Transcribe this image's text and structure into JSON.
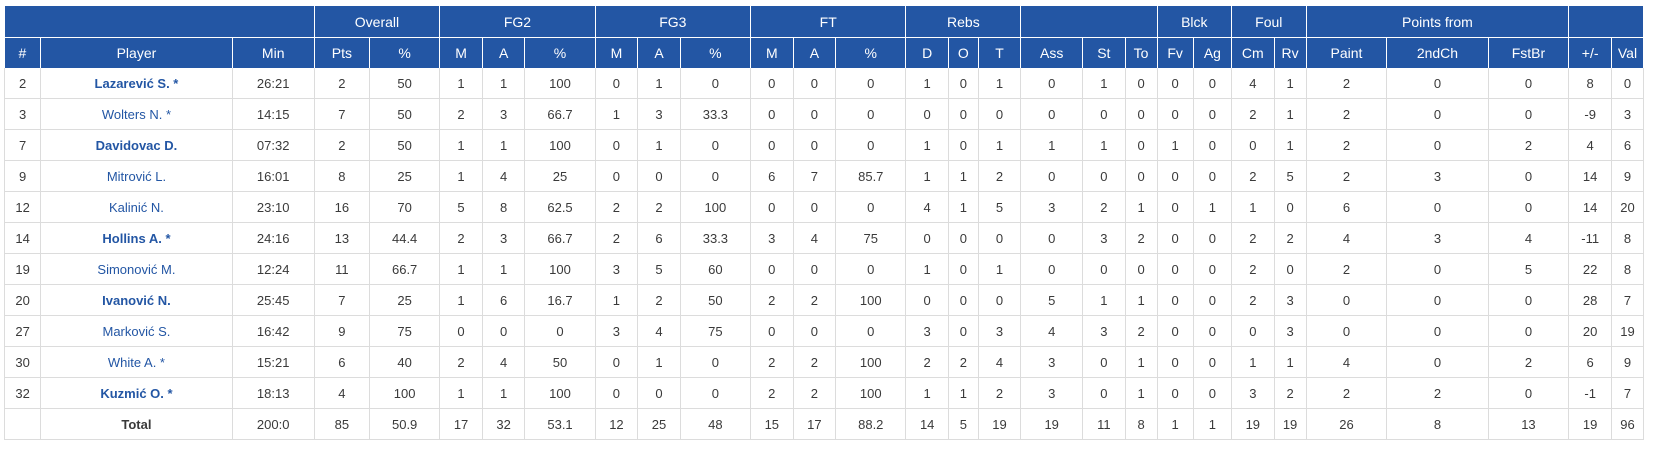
{
  "groups": [
    {
      "label": "",
      "span": 3
    },
    {
      "label": "Overall",
      "span": 2
    },
    {
      "label": "FG2",
      "span": 3
    },
    {
      "label": "FG3",
      "span": 3
    },
    {
      "label": "FT",
      "span": 3
    },
    {
      "label": "Rebs",
      "span": 3
    },
    {
      "label": "",
      "span": 3
    },
    {
      "label": "Blck",
      "span": 2
    },
    {
      "label": "Foul",
      "span": 2
    },
    {
      "label": "Points from",
      "span": 3
    },
    {
      "label": "",
      "span": 2
    }
  ],
  "columns": [
    "#",
    "Player",
    "Min",
    "Pts",
    "%",
    "M",
    "A",
    "%",
    "M",
    "A",
    "%",
    "M",
    "A",
    "%",
    "D",
    "O",
    "T",
    "Ass",
    "St",
    "To",
    "Fv",
    "Ag",
    "Cm",
    "Rv",
    "Paint",
    "2ndCh",
    "FstBr",
    "+/-",
    "Val"
  ],
  "players": [
    {
      "num": "2",
      "name": "Lazarević S. *",
      "bold": true,
      "stats": [
        "26:21",
        "2",
        "50",
        "1",
        "1",
        "100",
        "0",
        "1",
        "0",
        "0",
        "0",
        "0",
        "1",
        "0",
        "1",
        "0",
        "1",
        "0",
        "0",
        "0",
        "4",
        "1",
        "2",
        "0",
        "0",
        "8",
        "0"
      ]
    },
    {
      "num": "3",
      "name": "Wolters N. *",
      "bold": false,
      "stats": [
        "14:15",
        "7",
        "50",
        "2",
        "3",
        "66.7",
        "1",
        "3",
        "33.3",
        "0",
        "0",
        "0",
        "0",
        "0",
        "0",
        "0",
        "0",
        "0",
        "0",
        "0",
        "2",
        "1",
        "2",
        "0",
        "0",
        "-9",
        "3"
      ]
    },
    {
      "num": "7",
      "name": "Davidovac D.",
      "bold": true,
      "stats": [
        "07:32",
        "2",
        "50",
        "1",
        "1",
        "100",
        "0",
        "1",
        "0",
        "0",
        "0",
        "0",
        "1",
        "0",
        "1",
        "1",
        "1",
        "0",
        "1",
        "0",
        "0",
        "1",
        "2",
        "0",
        "2",
        "4",
        "6"
      ]
    },
    {
      "num": "9",
      "name": "Mitrović L.",
      "bold": false,
      "stats": [
        "16:01",
        "8",
        "25",
        "1",
        "4",
        "25",
        "0",
        "0",
        "0",
        "6",
        "7",
        "85.7",
        "1",
        "1",
        "2",
        "0",
        "0",
        "0",
        "0",
        "0",
        "2",
        "5",
        "2",
        "3",
        "0",
        "14",
        "9"
      ]
    },
    {
      "num": "12",
      "name": "Kalinić N.",
      "bold": false,
      "stats": [
        "23:10",
        "16",
        "70",
        "5",
        "8",
        "62.5",
        "2",
        "2",
        "100",
        "0",
        "0",
        "0",
        "4",
        "1",
        "5",
        "3",
        "2",
        "1",
        "0",
        "1",
        "1",
        "0",
        "6",
        "0",
        "0",
        "14",
        "20"
      ]
    },
    {
      "num": "14",
      "name": "Hollins A. *",
      "bold": true,
      "stats": [
        "24:16",
        "13",
        "44.4",
        "2",
        "3",
        "66.7",
        "2",
        "6",
        "33.3",
        "3",
        "4",
        "75",
        "0",
        "0",
        "0",
        "0",
        "3",
        "2",
        "0",
        "0",
        "2",
        "2",
        "4",
        "3",
        "4",
        "-11",
        "8"
      ]
    },
    {
      "num": "19",
      "name": "Simonović M.",
      "bold": false,
      "stats": [
        "12:24",
        "11",
        "66.7",
        "1",
        "1",
        "100",
        "3",
        "5",
        "60",
        "0",
        "0",
        "0",
        "1",
        "0",
        "1",
        "0",
        "0",
        "0",
        "0",
        "0",
        "2",
        "0",
        "2",
        "0",
        "5",
        "22",
        "8"
      ]
    },
    {
      "num": "20",
      "name": "Ivanović N.",
      "bold": true,
      "stats": [
        "25:45",
        "7",
        "25",
        "1",
        "6",
        "16.7",
        "1",
        "2",
        "50",
        "2",
        "2",
        "100",
        "0",
        "0",
        "0",
        "5",
        "1",
        "1",
        "0",
        "0",
        "2",
        "3",
        "0",
        "0",
        "0",
        "28",
        "7"
      ]
    },
    {
      "num": "27",
      "name": "Marković S.",
      "bold": false,
      "stats": [
        "16:42",
        "9",
        "75",
        "0",
        "0",
        "0",
        "3",
        "4",
        "75",
        "0",
        "0",
        "0",
        "3",
        "0",
        "3",
        "4",
        "3",
        "2",
        "0",
        "0",
        "0",
        "3",
        "0",
        "0",
        "0",
        "20",
        "19"
      ]
    },
    {
      "num": "30",
      "name": "White A. *",
      "bold": false,
      "stats": [
        "15:21",
        "6",
        "40",
        "2",
        "4",
        "50",
        "0",
        "1",
        "0",
        "2",
        "2",
        "100",
        "2",
        "2",
        "4",
        "3",
        "0",
        "1",
        "0",
        "0",
        "1",
        "1",
        "4",
        "0",
        "2",
        "6",
        "9"
      ]
    },
    {
      "num": "32",
      "name": "Kuzmić O. *",
      "bold": true,
      "stats": [
        "18:13",
        "4",
        "100",
        "1",
        "1",
        "100",
        "0",
        "0",
        "0",
        "2",
        "2",
        "100",
        "1",
        "1",
        "2",
        "3",
        "0",
        "1",
        "0",
        "0",
        "3",
        "2",
        "2",
        "2",
        "0",
        "-1",
        "7"
      ]
    }
  ],
  "total": {
    "label": "Total",
    "stats": [
      "200:0",
      "85",
      "50.9",
      "17",
      "32",
      "53.1",
      "12",
      "25",
      "48",
      "15",
      "17",
      "88.2",
      "14",
      "5",
      "19",
      "19",
      "11",
      "8",
      "1",
      "1",
      "19",
      "19",
      "26",
      "8",
      "13",
      "19",
      "96"
    ]
  },
  "colors": {
    "header_bg": "#2356a4",
    "name_link": "#2356a4"
  }
}
